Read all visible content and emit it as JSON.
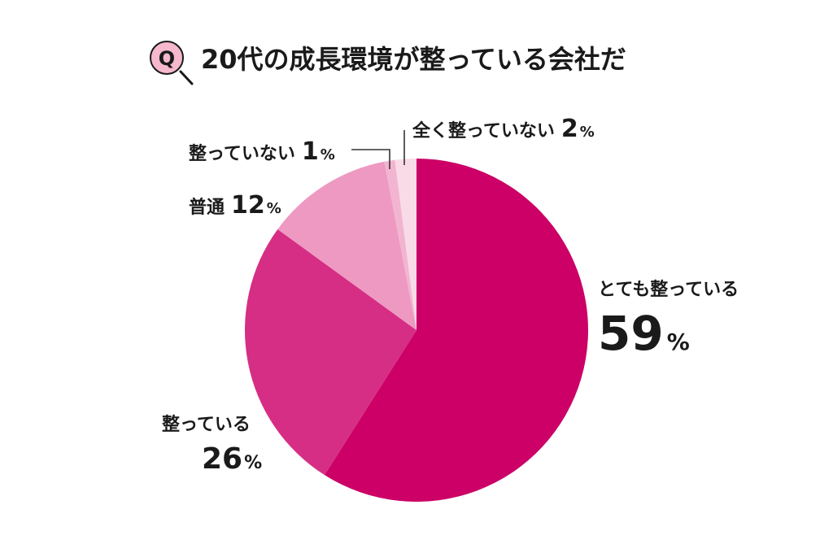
{
  "title": {
    "badge_letter": "Q",
    "text": "20代の成長環境が整っている会社だ"
  },
  "colors": {
    "badge_fill": "#f5b8cd",
    "badge_stroke": "#1a1a1a"
  },
  "chart_data": {
    "type": "pie",
    "title": "20代の成長環境が整っている会社だ",
    "unit": "%",
    "slices": [
      {
        "label": "とても整っている",
        "value": 59,
        "color": "#cc0066"
      },
      {
        "label": "整っている",
        "value": 26,
        "color": "#d62e84"
      },
      {
        "label": "普通",
        "value": 12,
        "color": "#ee99c2"
      },
      {
        "label": "整っていない",
        "value": 1,
        "color": "#f2b5d1"
      },
      {
        "label": "全く整っていない",
        "value": 2,
        "color": "#f9dbe8"
      }
    ]
  }
}
